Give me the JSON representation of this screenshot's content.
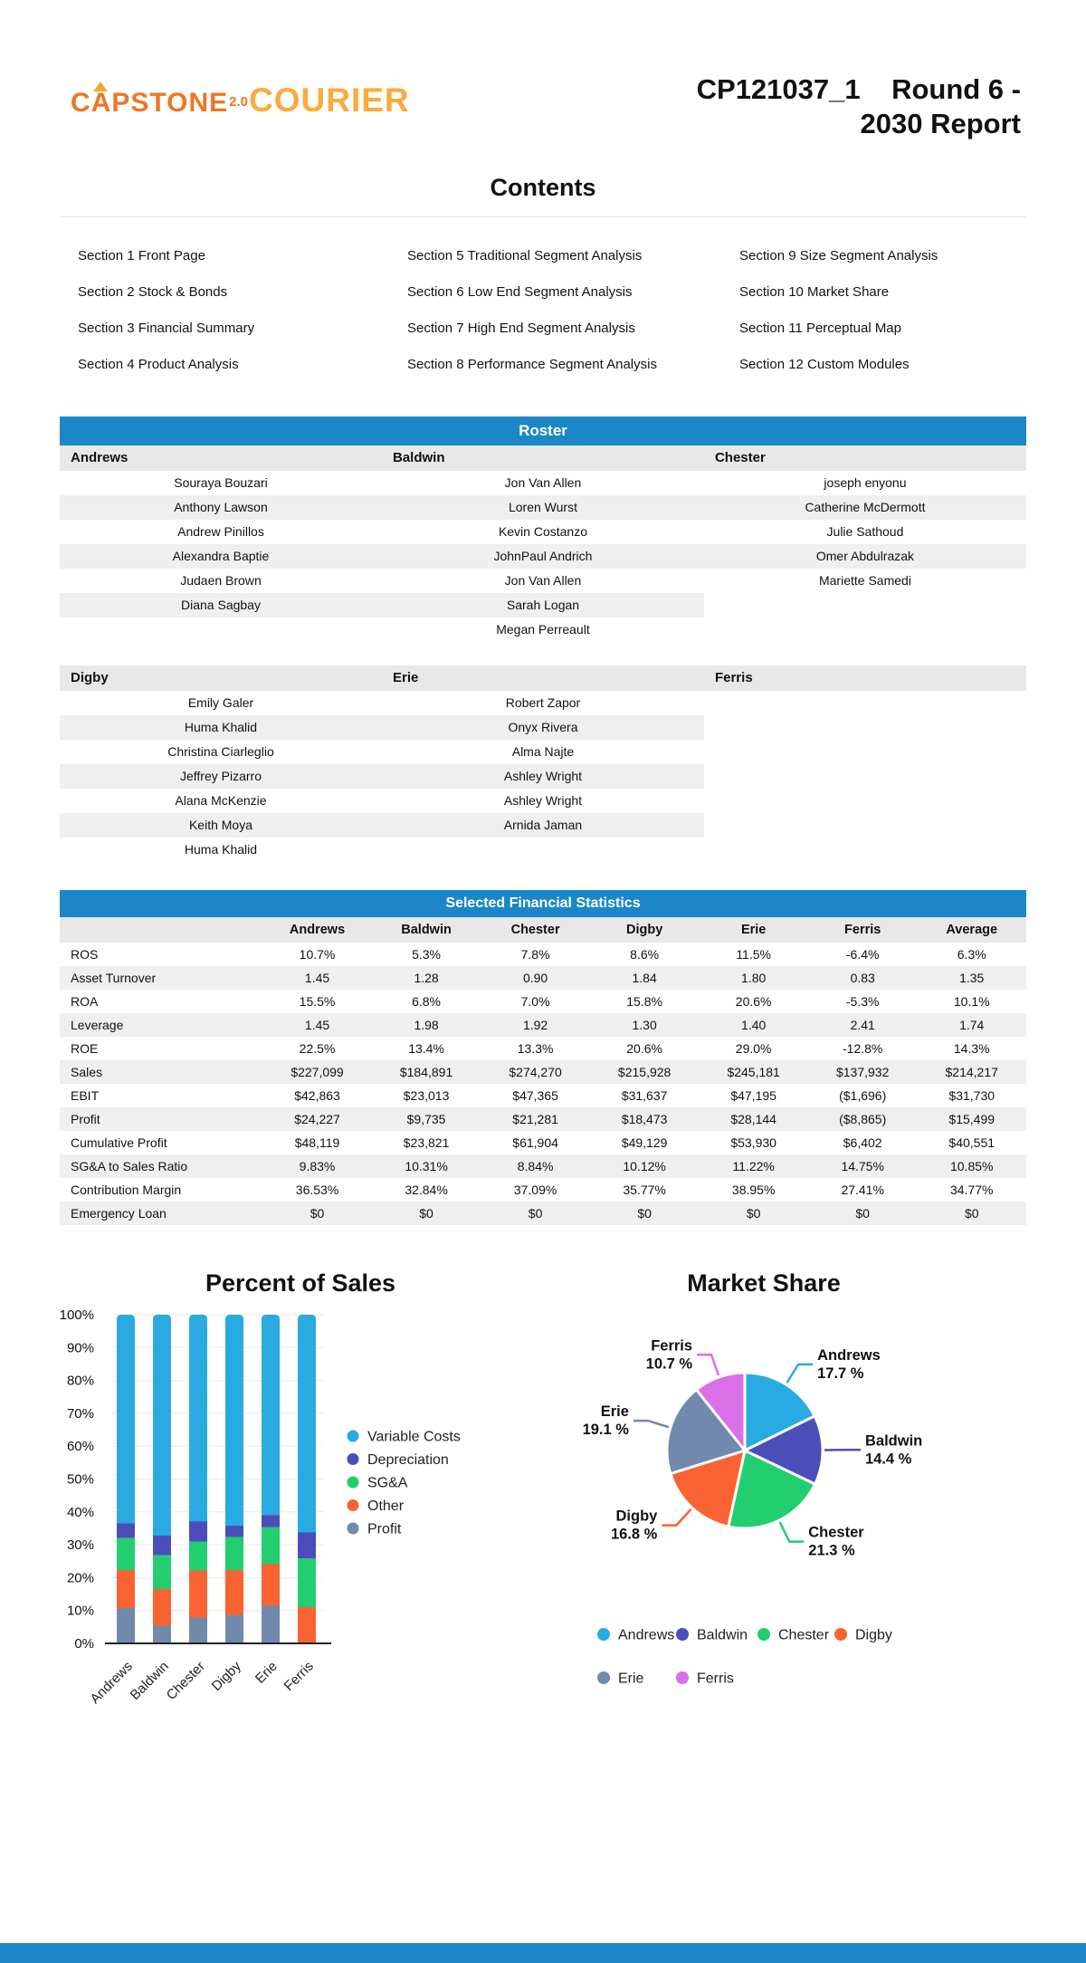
{
  "header": {
    "logo": {
      "capstone": "CAPSTONE",
      "version": "2.0",
      "courier": "COURIER"
    },
    "title_line1": "CP121037_1    Round 6 -",
    "title_line2": "2030 Report"
  },
  "contents": {
    "heading": "Contents",
    "items": [
      "Section 1 Front Page",
      "Section 2 Stock & Bonds",
      "Section 3 Financial Summary",
      "Section 4 Product Analysis",
      "Section 5 Traditional Segment Analysis",
      "Section 6 Low End Segment Analysis",
      "Section 7 High End Segment Analysis",
      "Section 8 Performance Segment Analysis",
      "Section 9 Size Segment Analysis",
      "Section 10 Market Share",
      "Section 11 Perceptual Map",
      "Section 12 Custom Modules"
    ]
  },
  "roster": {
    "heading": "Roster",
    "groups": [
      {
        "teams": [
          {
            "name": "Andrews",
            "members": [
              "Souraya Bouzari",
              "Anthony Lawson",
              "Andrew Pinillos",
              "Alexandra Baptie",
              "Judaen Brown",
              "Diana Sagbay"
            ]
          },
          {
            "name": "Baldwin",
            "members": [
              "Jon Van Allen",
              "Loren Wurst",
              "Kevin Costanzo",
              "JohnPaul Andrich",
              "Jon Van Allen",
              "Sarah Logan",
              "Megan Perreault"
            ]
          },
          {
            "name": "Chester",
            "members": [
              "joseph enyonu",
              "Catherine McDermott",
              "Julie Sathoud",
              "Omer Abdulrazak",
              "Mariette Samedi"
            ]
          }
        ]
      },
      {
        "teams": [
          {
            "name": "Digby",
            "members": [
              "Emily Galer",
              "Huma Khalid",
              "Christina Ciarleglio",
              "Jeffrey Pizarro",
              "Alana McKenzie",
              "Keith Moya",
              "Huma Khalid"
            ]
          },
          {
            "name": "Erie",
            "members": [
              "Robert Zapor",
              "Onyx Rivera",
              "Alma Najte",
              "Ashley Wright",
              "Ashley Wright",
              "Arnida Jaman"
            ]
          },
          {
            "name": "Ferris",
            "members": []
          }
        ]
      }
    ]
  },
  "financials": {
    "heading": "Selected Financial Statistics",
    "columns": [
      "",
      "Andrews",
      "Baldwin",
      "Chester",
      "Digby",
      "Erie",
      "Ferris",
      "Average"
    ],
    "rows": [
      {
        "label": "ROS",
        "values": [
          "10.7%",
          "5.3%",
          "7.8%",
          "8.6%",
          "11.5%",
          "-6.4%",
          "6.3%"
        ]
      },
      {
        "label": "Asset Turnover",
        "values": [
          "1.45",
          "1.28",
          "0.90",
          "1.84",
          "1.80",
          "0.83",
          "1.35"
        ]
      },
      {
        "label": "ROA",
        "values": [
          "15.5%",
          "6.8%",
          "7.0%",
          "15.8%",
          "20.6%",
          "-5.3%",
          "10.1%"
        ]
      },
      {
        "label": "Leverage",
        "values": [
          "1.45",
          "1.98",
          "1.92",
          "1.30",
          "1.40",
          "2.41",
          "1.74"
        ]
      },
      {
        "label": "ROE",
        "values": [
          "22.5%",
          "13.4%",
          "13.3%",
          "20.6%",
          "29.0%",
          "-12.8%",
          "14.3%"
        ]
      },
      {
        "label": "Sales",
        "values": [
          "$227,099",
          "$184,891",
          "$274,270",
          "$215,928",
          "$245,181",
          "$137,932",
          "$214,217"
        ]
      },
      {
        "label": "EBIT",
        "values": [
          "$42,863",
          "$23,013",
          "$47,365",
          "$31,637",
          "$47,195",
          "($1,696)",
          "$31,730"
        ]
      },
      {
        "label": "Profit",
        "values": [
          "$24,227",
          "$9,735",
          "$21,281",
          "$18,473",
          "$28,144",
          "($8,865)",
          "$15,499"
        ]
      },
      {
        "label": "Cumulative Profit",
        "values": [
          "$48,119",
          "$23,821",
          "$61,904",
          "$49,129",
          "$53,930",
          "$6,402",
          "$40,551"
        ]
      },
      {
        "label": "SG&A to Sales Ratio",
        "values": [
          "9.83%",
          "10.31%",
          "8.84%",
          "10.12%",
          "11.22%",
          "14.75%",
          "10.85%"
        ]
      },
      {
        "label": "Contribution Margin",
        "values": [
          "36.53%",
          "32.84%",
          "37.09%",
          "35.77%",
          "38.95%",
          "27.41%",
          "34.77%"
        ]
      },
      {
        "label": "Emergency Loan",
        "values": [
          "$0",
          "$0",
          "$0",
          "$0",
          "$0",
          "$0",
          "$0"
        ]
      }
    ]
  },
  "chart_data": [
    {
      "type": "bar",
      "stacked": true,
      "title": "Percent of Sales",
      "categories": [
        "Andrews",
        "Baldwin",
        "Chester",
        "Digby",
        "Erie",
        "Ferris"
      ],
      "series": [
        {
          "name": "Profit",
          "color": "#7189ac",
          "values": [
            10.7,
            5.3,
            7.8,
            8.6,
            11.5,
            0
          ]
        },
        {
          "name": "Other",
          "color": "#f96331",
          "values": [
            11.6,
            11.3,
            14.4,
            13.7,
            12.7,
            11.1
          ]
        },
        {
          "name": "SG&A",
          "color": "#22ce70",
          "values": [
            9.8,
            10.3,
            8.8,
            10.1,
            11.2,
            14.8
          ]
        },
        {
          "name": "Depreciation",
          "color": "#4c4dbb",
          "values": [
            4.4,
            5.9,
            6.1,
            3.4,
            3.6,
            7.9
          ]
        },
        {
          "name": "Variable Costs",
          "color": "#29abe2",
          "values": [
            63.5,
            67.2,
            62.9,
            64.2,
            61.0,
            66.2
          ]
        }
      ],
      "legend_order": [
        "Variable Costs",
        "Depreciation",
        "SG&A",
        "Other",
        "Profit"
      ],
      "legend_position": "right",
      "xlabel": "",
      "ylabel": "",
      "ylim": [
        0,
        100
      ],
      "yticks": [
        "0%",
        "10%",
        "20%",
        "30%",
        "40%",
        "50%",
        "60%",
        "70%",
        "80%",
        "90%",
        "100%"
      ],
      "grid": true
    },
    {
      "type": "pie",
      "title": "Market Share",
      "labels": [
        "Andrews",
        "Baldwin",
        "Chester",
        "Digby",
        "Erie",
        "Ferris"
      ],
      "values": [
        17.7,
        14.4,
        21.3,
        16.8,
        19.1,
        10.7
      ],
      "colors": [
        "#29abe2",
        "#4c4dbb",
        "#22ce70",
        "#f96331",
        "#7189ac",
        "#da6fe8"
      ],
      "label_suffix": " %",
      "legend_position": "bottom",
      "legend_rows": [
        [
          "Andrews",
          "Baldwin",
          "Chester",
          "Digby"
        ],
        [
          "Erie",
          "Ferris"
        ]
      ]
    }
  ],
  "colors": {
    "bar_blue": "#1b87c6",
    "stripe": "#efefef",
    "header_gray": "#e8e8e8",
    "logo_orange": "#ee7623",
    "logo_amber": "#fbab3d"
  }
}
